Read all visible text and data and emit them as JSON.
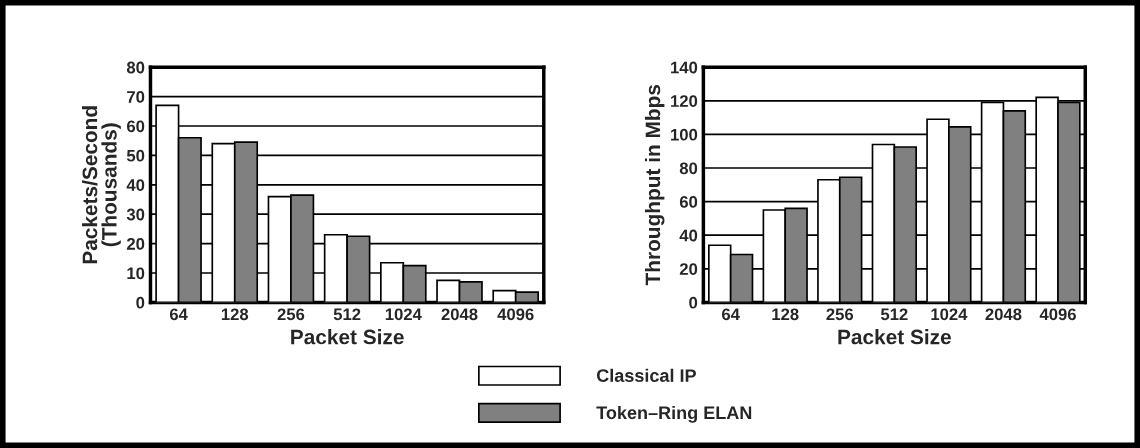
{
  "chart_data": [
    {
      "type": "bar",
      "xlabel": "Packet Size",
      "ylabel": "Packets/Second\n(Thousands)",
      "categories": [
        "64",
        "128",
        "256",
        "512",
        "1024",
        "2048",
        "4096"
      ],
      "ylim": [
        0,
        80
      ],
      "yticks": [
        0,
        10,
        20,
        30,
        40,
        50,
        60,
        70,
        80
      ],
      "grid": "y",
      "legend": false,
      "series": [
        {
          "color": "#ffffff",
          "values": [
            67,
            54,
            36,
            23,
            13.5,
            7.5,
            4
          ]
        },
        {
          "color": "#808080",
          "values": [
            56,
            54.5,
            36.5,
            22.5,
            12.5,
            7,
            3.5
          ]
        }
      ]
    },
    {
      "type": "bar",
      "xlabel": "Packet Size",
      "ylabel": "Throughput in Mbps",
      "categories": [
        "64",
        "128",
        "256",
        "512",
        "1024",
        "2048",
        "4096"
      ],
      "ylim": [
        0,
        140
      ],
      "yticks": [
        0,
        20,
        40,
        60,
        80,
        100,
        120,
        140
      ],
      "grid": "y",
      "legend": "bottom",
      "series": [
        {
          "name": "Classical IP",
          "color": "#ffffff",
          "values": [
            34,
            55,
            73,
            94,
            109,
            119,
            122
          ]
        },
        {
          "name": "Token–Ring ELAN",
          "color": "#808080",
          "values": [
            28.5,
            56,
            74.5,
            92.5,
            104.5,
            114,
            119
          ]
        }
      ]
    }
  ]
}
